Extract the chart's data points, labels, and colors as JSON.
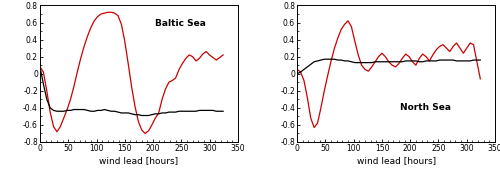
{
  "baltic_red_x": [
    0,
    6,
    12,
    18,
    24,
    30,
    36,
    42,
    48,
    54,
    60,
    66,
    72,
    78,
    84,
    90,
    96,
    102,
    108,
    114,
    120,
    126,
    132,
    138,
    144,
    150,
    156,
    162,
    168,
    174,
    180,
    186,
    192,
    198,
    204,
    210,
    216,
    222,
    228,
    234,
    240,
    246,
    252,
    258,
    264,
    270,
    276,
    282,
    288,
    294,
    300,
    306,
    312,
    318,
    324
  ],
  "baltic_red_y": [
    0.08,
    0.02,
    -0.2,
    -0.45,
    -0.62,
    -0.68,
    -0.62,
    -0.52,
    -0.42,
    -0.3,
    -0.15,
    0.02,
    0.18,
    0.32,
    0.44,
    0.54,
    0.62,
    0.67,
    0.7,
    0.71,
    0.72,
    0.72,
    0.71,
    0.68,
    0.58,
    0.38,
    0.12,
    -0.15,
    -0.38,
    -0.56,
    -0.66,
    -0.7,
    -0.67,
    -0.6,
    -0.52,
    -0.46,
    -0.3,
    -0.18,
    -0.1,
    -0.08,
    -0.05,
    0.05,
    0.12,
    0.18,
    0.22,
    0.2,
    0.15,
    0.18,
    0.23,
    0.26,
    0.22,
    0.19,
    0.16,
    0.19,
    0.22
  ],
  "baltic_black_x": [
    0,
    6,
    12,
    18,
    24,
    30,
    36,
    42,
    48,
    54,
    60,
    66,
    72,
    78,
    84,
    90,
    96,
    102,
    108,
    114,
    120,
    126,
    132,
    138,
    144,
    150,
    156,
    162,
    168,
    174,
    180,
    186,
    192,
    198,
    204,
    210,
    216,
    222,
    228,
    234,
    240,
    246,
    252,
    258,
    264,
    270,
    276,
    282,
    288,
    294,
    300,
    306,
    312,
    318,
    324
  ],
  "baltic_black_y": [
    0.08,
    -0.12,
    -0.3,
    -0.4,
    -0.43,
    -0.44,
    -0.44,
    -0.44,
    -0.43,
    -0.43,
    -0.42,
    -0.42,
    -0.42,
    -0.42,
    -0.43,
    -0.44,
    -0.44,
    -0.43,
    -0.43,
    -0.42,
    -0.43,
    -0.44,
    -0.44,
    -0.45,
    -0.46,
    -0.46,
    -0.46,
    -0.47,
    -0.48,
    -0.48,
    -0.49,
    -0.49,
    -0.49,
    -0.48,
    -0.47,
    -0.47,
    -0.46,
    -0.46,
    -0.45,
    -0.45,
    -0.45,
    -0.44,
    -0.44,
    -0.44,
    -0.44,
    -0.44,
    -0.44,
    -0.43,
    -0.43,
    -0.43,
    -0.43,
    -0.43,
    -0.44,
    -0.44,
    -0.44
  ],
  "north_red_x": [
    0,
    6,
    12,
    18,
    24,
    30,
    36,
    42,
    48,
    54,
    60,
    66,
    72,
    78,
    84,
    90,
    96,
    102,
    108,
    114,
    120,
    126,
    132,
    138,
    144,
    150,
    156,
    162,
    168,
    174,
    180,
    186,
    192,
    198,
    204,
    210,
    216,
    222,
    228,
    234,
    240,
    246,
    252,
    258,
    264,
    270,
    276,
    282,
    288,
    294,
    300,
    306,
    312,
    318,
    324
  ],
  "north_red_y": [
    0.05,
    0.02,
    -0.08,
    -0.28,
    -0.52,
    -0.63,
    -0.58,
    -0.4,
    -0.2,
    -0.02,
    0.15,
    0.3,
    0.42,
    0.52,
    0.58,
    0.62,
    0.55,
    0.38,
    0.22,
    0.1,
    0.05,
    0.03,
    0.08,
    0.14,
    0.2,
    0.24,
    0.2,
    0.14,
    0.1,
    0.08,
    0.12,
    0.18,
    0.23,
    0.2,
    0.14,
    0.1,
    0.18,
    0.23,
    0.2,
    0.15,
    0.22,
    0.28,
    0.32,
    0.34,
    0.3,
    0.26,
    0.32,
    0.36,
    0.3,
    0.24,
    0.3,
    0.36,
    0.34,
    0.14,
    -0.06
  ],
  "north_black_x": [
    0,
    6,
    12,
    18,
    24,
    30,
    36,
    42,
    48,
    54,
    60,
    66,
    72,
    78,
    84,
    90,
    96,
    102,
    108,
    114,
    120,
    126,
    132,
    138,
    144,
    150,
    156,
    162,
    168,
    174,
    180,
    186,
    192,
    198,
    204,
    210,
    216,
    222,
    228,
    234,
    240,
    246,
    252,
    258,
    264,
    270,
    276,
    282,
    288,
    294,
    300,
    306,
    312,
    318,
    324
  ],
  "north_black_y": [
    0.0,
    0.02,
    0.05,
    0.08,
    0.11,
    0.14,
    0.15,
    0.16,
    0.17,
    0.17,
    0.17,
    0.17,
    0.16,
    0.16,
    0.15,
    0.15,
    0.14,
    0.13,
    0.13,
    0.13,
    0.13,
    0.13,
    0.13,
    0.14,
    0.14,
    0.14,
    0.14,
    0.14,
    0.14,
    0.14,
    0.14,
    0.14,
    0.15,
    0.15,
    0.15,
    0.15,
    0.14,
    0.14,
    0.15,
    0.15,
    0.15,
    0.15,
    0.16,
    0.16,
    0.16,
    0.16,
    0.16,
    0.15,
    0.15,
    0.15,
    0.15,
    0.15,
    0.16,
    0.16,
    0.16
  ],
  "red_color": "#cc0000",
  "black_color": "#000000",
  "ylim": [
    -0.8,
    0.8
  ],
  "xlim": [
    0,
    350
  ],
  "yticks": [
    -0.8,
    -0.6,
    -0.4,
    -0.2,
    0.0,
    0.2,
    0.4,
    0.6,
    0.8
  ],
  "xticks": [
    0,
    50,
    100,
    150,
    200,
    250,
    300,
    350
  ],
  "xlabel": "wind lead [hours]",
  "label_baltic": "Baltic Sea",
  "label_north": "North Sea",
  "background": "#ffffff",
  "linewidth": 0.9,
  "tick_labelsize": 5.5,
  "label_fontsize": 6.5,
  "annot_fontsize": 6.5
}
